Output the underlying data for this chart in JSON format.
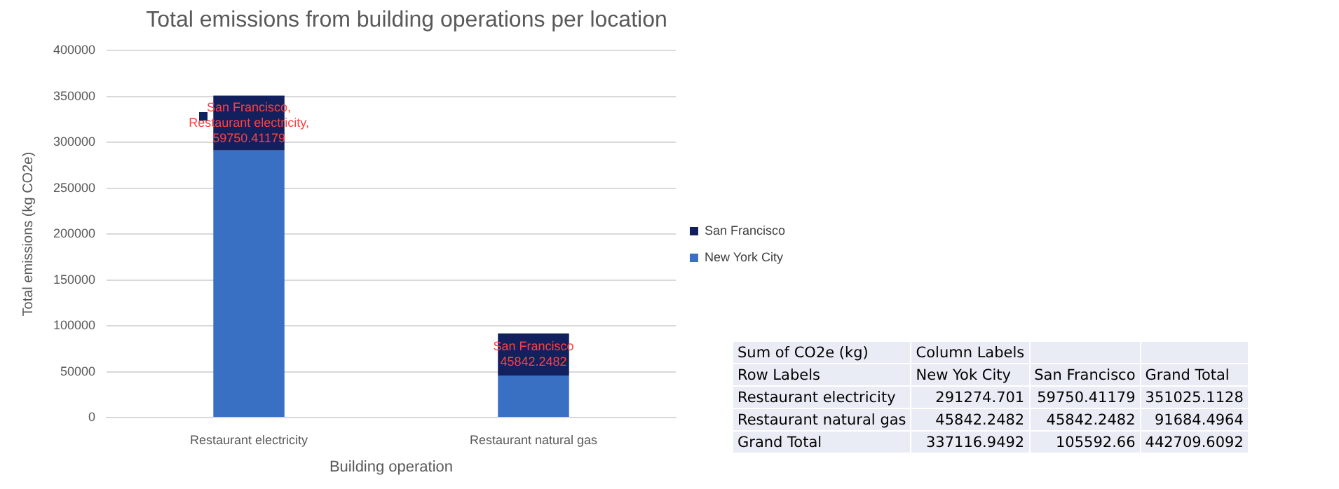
{
  "chart_data": {
    "type": "bar",
    "title": "Total emissions from building operations per location",
    "xlabel": "Building operation",
    "ylabel": "Total emissions (kg CO2e)",
    "categories": [
      "Restaurant electricity",
      "Restaurant natural gas"
    ],
    "stacked": true,
    "ylim": [
      0,
      400000
    ],
    "yticks": [
      0,
      50000,
      100000,
      150000,
      200000,
      250000,
      300000,
      350000,
      400000
    ],
    "grid": "y",
    "legend": "right",
    "series": [
      {
        "name": "New York City",
        "color": "#3a70c4",
        "values": [
          291274.701,
          45842.2482
        ]
      },
      {
        "name": "San Francisco",
        "color": "#12205e",
        "values": [
          59750.41179,
          45842.2482
        ],
        "value_labels": [
          "San Francisco, Restaurant electricity, 59750.41179",
          "San Francisco 45842.2482"
        ]
      }
    ],
    "annotations": [
      "Sum of CO2e (kg)",
      "Column Labels",
      "Row Labels",
      "New Yok City",
      "San Francisco",
      "Grand Total",
      "Restaurant electricity",
      "291274.701",
      "59750.41179",
      "351025.1128",
      "Restaurant natural gas",
      "45842.2482",
      "45842.2482",
      "91684.4964",
      "Grand Total",
      "337116.9492",
      "105592.66",
      "442709.6092"
    ]
  }
}
